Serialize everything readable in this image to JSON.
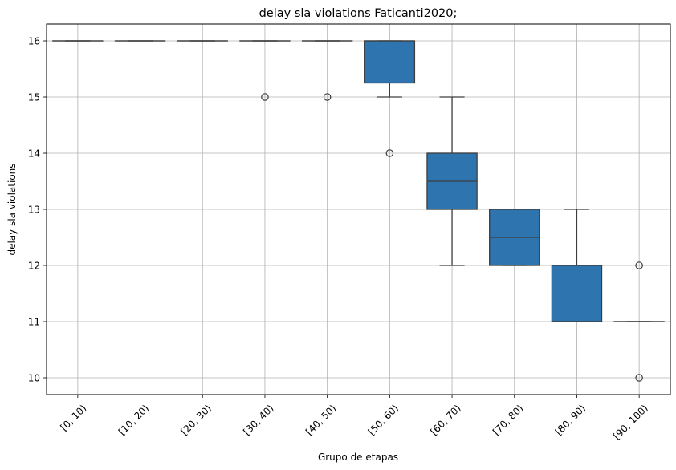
{
  "chart_data": {
    "type": "box",
    "title": "delay sla violations Faticanti2020;",
    "xlabel": "Grupo de etapas",
    "ylabel": "delay sla violations",
    "ylim": [
      9.7,
      16.3
    ],
    "yticks": [
      10,
      11,
      12,
      13,
      14,
      15,
      16
    ],
    "grid": true,
    "legend": "none",
    "box_color": "#2e75b0",
    "categories": [
      "[0, 10)",
      "[10, 20)",
      "[20, 30)",
      "[30, 40)",
      "[40, 50)",
      "[50, 60)",
      "[60, 70)",
      "[70, 80)",
      "[80, 90)",
      "[90, 100)"
    ],
    "boxes": [
      {
        "q1": 16,
        "median": 16,
        "q3": 16,
        "whisker_low": 16,
        "whisker_high": 16,
        "outliers": []
      },
      {
        "q1": 16,
        "median": 16,
        "q3": 16,
        "whisker_low": 16,
        "whisker_high": 16,
        "outliers": []
      },
      {
        "q1": 16,
        "median": 16,
        "q3": 16,
        "whisker_low": 16,
        "whisker_high": 16,
        "outliers": []
      },
      {
        "q1": 16,
        "median": 16,
        "q3": 16,
        "whisker_low": 16,
        "whisker_high": 16,
        "outliers": [
          15
        ]
      },
      {
        "q1": 16,
        "median": 16,
        "q3": 16,
        "whisker_low": 16,
        "whisker_high": 16,
        "outliers": [
          15
        ]
      },
      {
        "q1": 15.25,
        "median": 16,
        "q3": 16,
        "whisker_low": 15,
        "whisker_high": 16,
        "outliers": [
          14
        ]
      },
      {
        "q1": 13,
        "median": 13.5,
        "q3": 14,
        "whisker_low": 12,
        "whisker_high": 15,
        "outliers": []
      },
      {
        "q1": 12,
        "median": 12.5,
        "q3": 13,
        "whisker_low": 12,
        "whisker_high": 13,
        "outliers": []
      },
      {
        "q1": 11,
        "median": 11,
        "q3": 12,
        "whisker_low": 11,
        "whisker_high": 13,
        "outliers": []
      },
      {
        "q1": 11,
        "median": 11,
        "q3": 11,
        "whisker_low": 11,
        "whisker_high": 11,
        "outliers": [
          12,
          10
        ]
      }
    ]
  }
}
